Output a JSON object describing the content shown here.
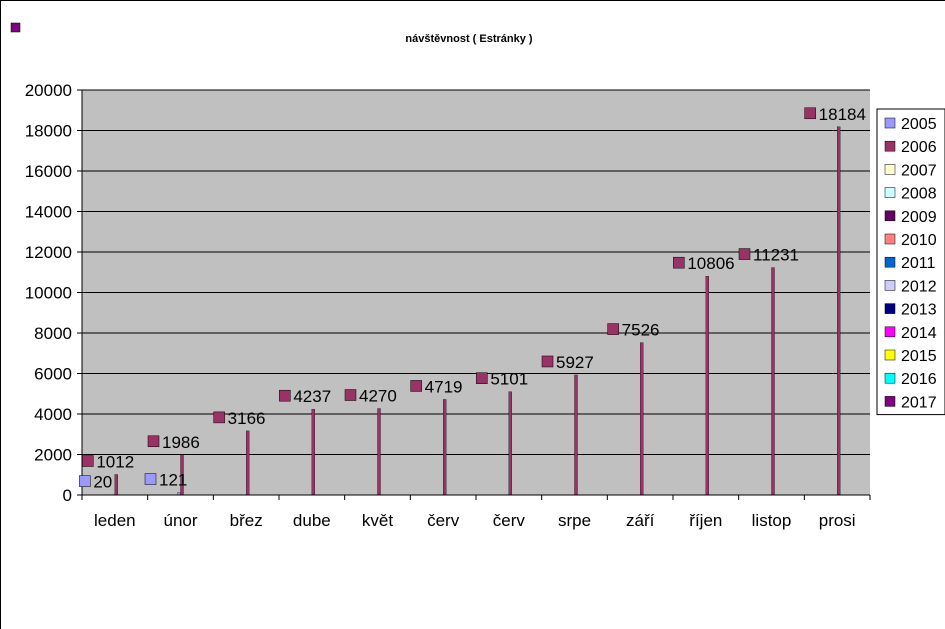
{
  "chart_data": {
    "type": "bar",
    "title": "návštěvnost ( Estránky )",
    "categories": [
      "leden",
      "únor",
      "břez",
      "dube",
      "květ",
      "červ",
      "červ",
      "srpe",
      "září",
      "říjen",
      "listop",
      "prosi"
    ],
    "series": [
      {
        "name": "2005",
        "color": "#9999ff",
        "values": [
          20,
          121,
          null,
          null,
          null,
          null,
          null,
          null,
          null,
          null,
          null,
          null
        ]
      },
      {
        "name": "2006",
        "color": "#993366",
        "values": [
          1012,
          1986,
          3166,
          4237,
          4270,
          4719,
          5101,
          5927,
          7526,
          10806,
          11231,
          18184
        ]
      }
    ],
    "ylim": [
      0,
      20000
    ],
    "yticks": [
      0,
      2000,
      4000,
      6000,
      8000,
      10000,
      12000,
      14000,
      16000,
      18000,
      20000
    ],
    "grid": true,
    "plot_background": "#c0c0c0",
    "legend_position": "right",
    "legend": [
      {
        "name": "2005",
        "color": "#9999ff"
      },
      {
        "name": "2006",
        "color": "#993366"
      },
      {
        "name": "2007",
        "color": "#ffffcc"
      },
      {
        "name": "2008",
        "color": "#ccffff"
      },
      {
        "name": "2009",
        "color": "#660066"
      },
      {
        "name": "2010",
        "color": "#ff8080"
      },
      {
        "name": "2011",
        "color": "#0066cc"
      },
      {
        "name": "2012",
        "color": "#ccccff"
      },
      {
        "name": "2013",
        "color": "#000080"
      },
      {
        "name": "2014",
        "color": "#ff00ff"
      },
      {
        "name": "2015",
        "color": "#ffff00"
      },
      {
        "name": "2016",
        "color": "#00ffff"
      },
      {
        "name": "2017",
        "color": "#800080"
      }
    ]
  },
  "corner_marker_color": "#800080"
}
